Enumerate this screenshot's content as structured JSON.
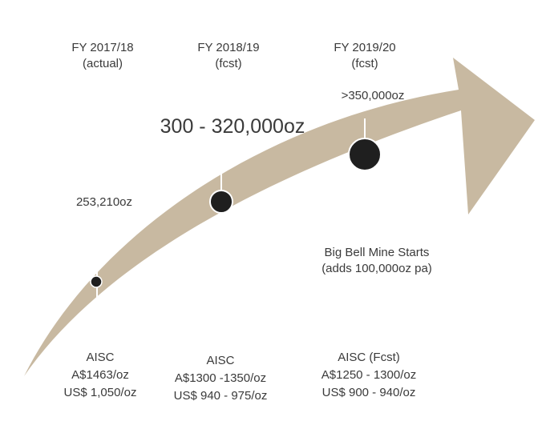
{
  "periods": [
    {
      "title": "FY 2017/18",
      "sub": "(actual)"
    },
    {
      "title": "FY 2018/19",
      "sub": "(fcst)"
    },
    {
      "title": "FY 2019/20",
      "sub": "(fcst)"
    }
  ],
  "production": {
    "fy2017_18": "253,210oz",
    "fy2018_19": "300 - 320,000oz",
    "fy2019_20": ">350,000oz"
  },
  "milestone": {
    "line1": "Big Bell Mine Starts",
    "line2": "(adds 100,000oz pa)"
  },
  "aisc": [
    {
      "title": "AISC",
      "aud": "A$1463/oz",
      "usd": "US$ 1,050/oz"
    },
    {
      "title": "AISC",
      "aud": "A$1300 -1350/oz",
      "usd": "US$ 940 - 975/oz"
    },
    {
      "title": "AISC (Fcst)",
      "aud": "A$1250 - 1300/oz",
      "usd": "US$ 900 - 940/oz"
    }
  ],
  "colors": {
    "arrow": "#c8b9a1",
    "marker": "#1f1f1f",
    "divider": "#ffffff"
  }
}
